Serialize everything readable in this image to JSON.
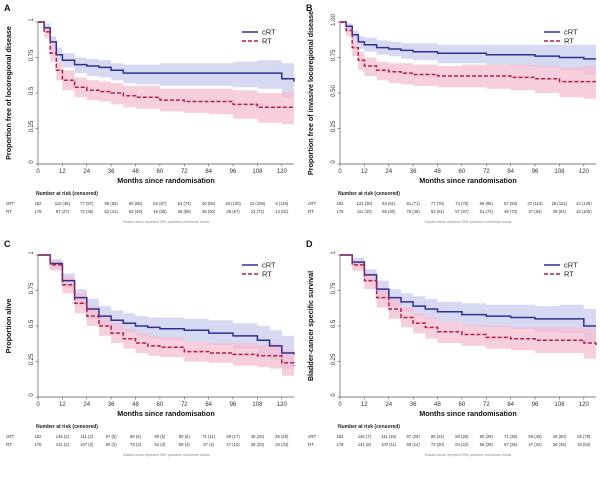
{
  "figure": {
    "colors": {
      "crt": "#2e3192",
      "crt_band": "#c9cbec",
      "rt": "#b0214f",
      "rt_band": "#f4bdd0",
      "axis": "#555555",
      "text": "#222222"
    },
    "risk_title": "Number at risk (censored)",
    "shading_note": "Shaded areas represent 95% pointwise confidence bands"
  },
  "chart_data": [
    {
      "type": "line",
      "panel": "A",
      "xlabel": "Months since randomisation",
      "ylabel": "Proportion free of locoregional disease",
      "xlim": [
        0,
        126
      ],
      "ylim": [
        0,
        1
      ],
      "x_ticks": [
        0,
        12,
        24,
        36,
        48,
        60,
        72,
        84,
        96,
        108,
        120
      ],
      "y_ticks": [
        0,
        0.25,
        0.5,
        0.75,
        1
      ],
      "y_tick_labels": [
        "0",
        "0.25",
        "0.5",
        "0.75",
        "1"
      ],
      "legend": "top-right",
      "series": [
        {
          "name": "cRT",
          "style": "solid",
          "x": [
            0,
            3,
            6,
            9,
            12,
            18,
            24,
            30,
            36,
            42,
            48,
            60,
            72,
            84,
            96,
            108,
            120,
            126
          ],
          "y": [
            1,
            0.96,
            0.86,
            0.77,
            0.73,
            0.7,
            0.69,
            0.68,
            0.66,
            0.64,
            0.64,
            0.64,
            0.64,
            0.64,
            0.64,
            0.64,
            0.6,
            0.58
          ],
          "lower": [
            1,
            0.93,
            0.81,
            0.72,
            0.68,
            0.64,
            0.62,
            0.61,
            0.59,
            0.57,
            0.56,
            0.55,
            0.55,
            0.55,
            0.54,
            0.53,
            0.47,
            0.45
          ],
          "upper": [
            1,
            0.99,
            0.9,
            0.82,
            0.78,
            0.75,
            0.74,
            0.73,
            0.71,
            0.7,
            0.7,
            0.71,
            0.71,
            0.71,
            0.72,
            0.73,
            0.71,
            0.7
          ]
        },
        {
          "name": "RT",
          "style": "dashed",
          "x": [
            0,
            3,
            6,
            9,
            12,
            18,
            24,
            30,
            36,
            42,
            48,
            60,
            72,
            84,
            96,
            108,
            120,
            126
          ],
          "y": [
            1,
            0.93,
            0.78,
            0.66,
            0.59,
            0.54,
            0.52,
            0.51,
            0.5,
            0.48,
            0.47,
            0.45,
            0.44,
            0.44,
            0.42,
            0.4,
            0.4,
            0.4
          ],
          "lower": [
            1,
            0.89,
            0.72,
            0.59,
            0.52,
            0.47,
            0.45,
            0.44,
            0.42,
            0.4,
            0.39,
            0.37,
            0.36,
            0.35,
            0.32,
            0.29,
            0.28,
            0.28
          ],
          "upper": [
            1,
            0.96,
            0.84,
            0.72,
            0.66,
            0.61,
            0.59,
            0.58,
            0.57,
            0.55,
            0.55,
            0.53,
            0.53,
            0.53,
            0.52,
            0.5,
            0.51,
            0.52
          ]
        }
      ],
      "risk_table": {
        "rows": [
          {
            "label": "cRT",
            "n": "182",
            "cells": [
              "110 (36)",
              "77 (57)",
              "68 (63)",
              "60 (65)",
              "62 (67)",
              "54 (74)",
              "46 (82)",
              "28 (100)",
              "22 (106)",
              "9 (119)"
            ]
          },
          {
            "label": "RT",
            "n": "178",
            "cells": [
              "97 (27)",
              "72 (35)",
              "62 (41)",
              "53 (49)",
              "46 (55)",
              "38 (59)",
              "36 (60)",
              "28 (67)",
              "23 (71)",
              "13 (81)"
            ]
          }
        ]
      }
    },
    {
      "type": "line",
      "panel": "B",
      "xlabel": "Months since randomisation",
      "ylabel": "Proportion free of invasive locoregional disease",
      "xlim": [
        0,
        126
      ],
      "ylim": [
        0,
        1
      ],
      "x_ticks": [
        0,
        12,
        24,
        36,
        48,
        60,
        72,
        84,
        96,
        108,
        120
      ],
      "y_ticks": [
        0,
        0.25,
        0.5,
        0.75,
        1
      ],
      "y_tick_labels": [
        "0",
        "0.25",
        "0.50",
        "0.75",
        "1.00"
      ],
      "legend": "top-right",
      "series": [
        {
          "name": "cRT",
          "style": "solid",
          "x": [
            0,
            3,
            6,
            9,
            12,
            18,
            24,
            30,
            36,
            48,
            60,
            72,
            84,
            96,
            108,
            120,
            126
          ],
          "y": [
            1,
            0.97,
            0.91,
            0.86,
            0.84,
            0.82,
            0.81,
            0.8,
            0.79,
            0.78,
            0.78,
            0.77,
            0.77,
            0.76,
            0.75,
            0.74,
            0.74
          ],
          "lower": [
            1,
            0.95,
            0.87,
            0.81,
            0.79,
            0.77,
            0.76,
            0.74,
            0.73,
            0.71,
            0.71,
            0.7,
            0.69,
            0.68,
            0.66,
            0.63,
            0.62
          ],
          "upper": [
            1,
            0.99,
            0.94,
            0.9,
            0.89,
            0.87,
            0.86,
            0.85,
            0.85,
            0.84,
            0.84,
            0.84,
            0.84,
            0.84,
            0.84,
            0.84,
            0.85
          ]
        },
        {
          "name": "RT",
          "style": "dashed",
          "x": [
            0,
            3,
            6,
            9,
            12,
            18,
            24,
            30,
            36,
            48,
            60,
            72,
            84,
            96,
            108,
            120,
            126
          ],
          "y": [
            1,
            0.94,
            0.82,
            0.73,
            0.69,
            0.66,
            0.65,
            0.64,
            0.63,
            0.62,
            0.62,
            0.62,
            0.61,
            0.6,
            0.58,
            0.58,
            0.58
          ],
          "lower": [
            1,
            0.9,
            0.76,
            0.66,
            0.62,
            0.59,
            0.57,
            0.56,
            0.55,
            0.54,
            0.54,
            0.53,
            0.52,
            0.5,
            0.47,
            0.46,
            0.46
          ],
          "upper": [
            1,
            0.97,
            0.87,
            0.79,
            0.75,
            0.72,
            0.71,
            0.71,
            0.7,
            0.69,
            0.7,
            0.7,
            0.7,
            0.69,
            0.68,
            0.69,
            0.7
          ]
        }
      ],
      "risk_table": {
        "rows": [
          {
            "label": "cRT",
            "n": "182",
            "cells": [
              "123 (39)",
              "94 (61)",
              "81 (71)",
              "77 (75)",
              "74 (78)",
              "66 (85)",
              "57 (93)",
              "37 (113)",
              "28 (121)",
              "13 (136)"
            ]
          },
          {
            "label": "RT",
            "n": "178",
            "cells": [
              "111 (30)",
              "88 (40)",
              "78 (48)",
              "63 (61)",
              "57 (67)",
              "51 (72)",
              "49 (73)",
              "37 (84)",
              "29 (91)",
              "15 (105)"
            ]
          }
        ]
      }
    },
    {
      "type": "line",
      "panel": "C",
      "xlabel": "Months since randomisation",
      "ylabel": "Proportion alive",
      "xlim": [
        0,
        126
      ],
      "ylim": [
        0,
        1
      ],
      "x_ticks": [
        0,
        12,
        24,
        36,
        48,
        60,
        72,
        84,
        96,
        108,
        120
      ],
      "y_ticks": [
        0,
        0.25,
        0.5,
        0.75,
        1
      ],
      "y_tick_labels": [
        "0",
        "0.25",
        "0.5",
        "0.75",
        "1"
      ],
      "legend": "top-right",
      "series": [
        {
          "name": "cRT",
          "style": "solid",
          "x": [
            0,
            6,
            12,
            18,
            24,
            30,
            36,
            42,
            48,
            54,
            60,
            72,
            84,
            96,
            108,
            114,
            120,
            126
          ],
          "y": [
            1,
            0.94,
            0.82,
            0.7,
            0.62,
            0.57,
            0.54,
            0.52,
            0.5,
            0.49,
            0.48,
            0.47,
            0.45,
            0.43,
            0.4,
            0.36,
            0.31,
            0.3
          ],
          "lower": [
            1,
            0.9,
            0.77,
            0.64,
            0.55,
            0.5,
            0.47,
            0.45,
            0.43,
            0.41,
            0.4,
            0.39,
            0.37,
            0.34,
            0.3,
            0.26,
            0.2,
            0.18
          ],
          "upper": [
            1,
            0.97,
            0.87,
            0.76,
            0.69,
            0.64,
            0.61,
            0.59,
            0.57,
            0.56,
            0.56,
            0.55,
            0.54,
            0.52,
            0.5,
            0.47,
            0.43,
            0.43
          ]
        },
        {
          "name": "RT",
          "style": "dashed",
          "x": [
            0,
            6,
            12,
            18,
            24,
            30,
            36,
            42,
            48,
            54,
            60,
            72,
            84,
            96,
            108,
            114,
            120,
            126
          ],
          "y": [
            1,
            0.93,
            0.79,
            0.66,
            0.57,
            0.5,
            0.45,
            0.41,
            0.38,
            0.36,
            0.35,
            0.32,
            0.31,
            0.3,
            0.29,
            0.29,
            0.24,
            0.22
          ],
          "lower": [
            1,
            0.89,
            0.73,
            0.59,
            0.5,
            0.43,
            0.38,
            0.34,
            0.31,
            0.29,
            0.28,
            0.25,
            0.24,
            0.22,
            0.21,
            0.2,
            0.15,
            0.13
          ],
          "upper": [
            1,
            0.96,
            0.85,
            0.73,
            0.64,
            0.57,
            0.52,
            0.48,
            0.45,
            0.43,
            0.42,
            0.39,
            0.38,
            0.38,
            0.37,
            0.38,
            0.33,
            0.31
          ]
        }
      ],
      "risk_table": {
        "rows": [
          {
            "label": "cRT",
            "n": "182",
            "cells": [
              "145 (2)",
              "111 (2)",
              "97 (5)",
              "88 (5)",
              "80 (5)",
              "80 (6)",
              "71 (11)",
              "59 (17)",
              "45 (25)",
              "25 (40)"
            ]
          },
          {
            "label": "RT",
            "n": "178",
            "cells": [
              "141 (2)",
              "107 (2)",
              "90 (2)",
              "73 (3)",
              "64 (3)",
              "58 (4)",
              "57 (4)",
              "47 (10)",
              "36 (20)",
              "18 (34)"
            ]
          }
        ]
      }
    },
    {
      "type": "line",
      "panel": "D",
      "xlabel": "Months since randomisation",
      "ylabel": "Bladder-cancer specific survival",
      "xlim": [
        0,
        126
      ],
      "ylim": [
        0,
        1
      ],
      "x_ticks": [
        0,
        12,
        24,
        36,
        48,
        60,
        72,
        84,
        96,
        108,
        120
      ],
      "y_ticks": [
        0,
        0.25,
        0.5,
        0.75,
        1
      ],
      "y_tick_labels": [
        "0",
        "0.25",
        "0.5",
        "0.75",
        "1"
      ],
      "legend": "top-right",
      "series": [
        {
          "name": "cRT",
          "style": "solid",
          "x": [
            0,
            6,
            12,
            18,
            24,
            30,
            36,
            42,
            48,
            60,
            72,
            84,
            96,
            108,
            120,
            126
          ],
          "y": [
            1,
            0.95,
            0.86,
            0.76,
            0.7,
            0.67,
            0.64,
            0.62,
            0.6,
            0.58,
            0.57,
            0.56,
            0.55,
            0.55,
            0.5,
            0.5
          ],
          "lower": [
            1,
            0.92,
            0.81,
            0.7,
            0.63,
            0.6,
            0.57,
            0.55,
            0.53,
            0.5,
            0.49,
            0.48,
            0.46,
            0.45,
            0.38,
            0.37
          ],
          "upper": [
            1,
            0.98,
            0.9,
            0.82,
            0.76,
            0.73,
            0.71,
            0.69,
            0.67,
            0.66,
            0.65,
            0.65,
            0.64,
            0.65,
            0.62,
            0.63
          ]
        },
        {
          "name": "RT",
          "style": "dashed",
          "x": [
            0,
            6,
            12,
            18,
            24,
            30,
            36,
            42,
            48,
            60,
            72,
            84,
            96,
            108,
            120,
            126
          ],
          "y": [
            1,
            0.93,
            0.82,
            0.7,
            0.62,
            0.56,
            0.52,
            0.49,
            0.46,
            0.44,
            0.42,
            0.41,
            0.4,
            0.4,
            0.38,
            0.36
          ],
          "lower": [
            1,
            0.89,
            0.76,
            0.63,
            0.55,
            0.49,
            0.45,
            0.41,
            0.38,
            0.36,
            0.34,
            0.33,
            0.31,
            0.31,
            0.27,
            0.24
          ],
          "upper": [
            1,
            0.96,
            0.87,
            0.76,
            0.69,
            0.63,
            0.59,
            0.56,
            0.53,
            0.51,
            0.5,
            0.49,
            0.49,
            0.49,
            0.48,
            0.47
          ]
        }
      ],
      "risk_table": {
        "rows": [
          {
            "label": "cRT",
            "n": "182",
            "cells": [
              "145 (7)",
              "111 (16)",
              "97 (20)",
              "88 (24)",
              "80 (25)",
              "80 (29)",
              "71 (36)",
              "59 (46)",
              "45 (60)",
              "25 (78)"
            ]
          },
          {
            "label": "RT",
            "n": "178",
            "cells": [
              "141 (8)",
              "107 (11)",
              "90 (14)",
              "73 (20)",
              "64 (22)",
              "58 (26)",
              "57 (26)",
              "47 (34)",
              "36 (45)",
              "18 (63)"
            ]
          }
        ]
      }
    }
  ]
}
